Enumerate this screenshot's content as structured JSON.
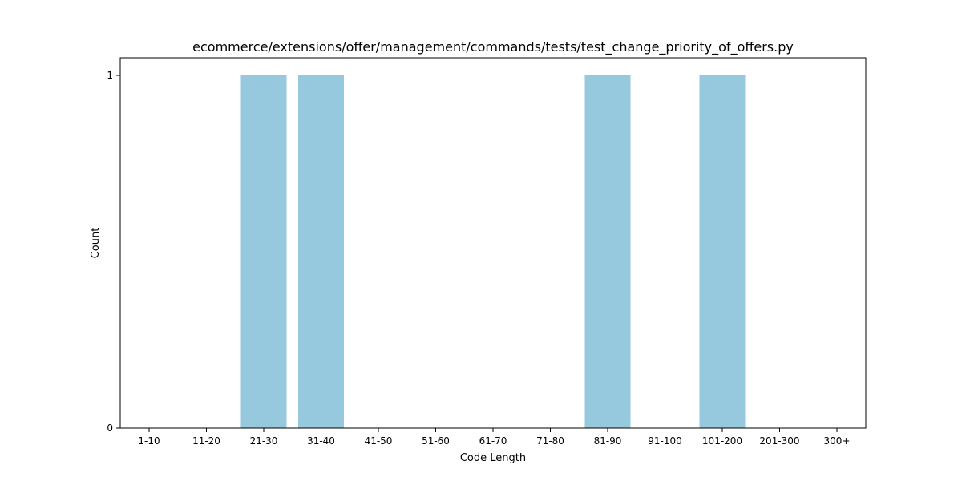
{
  "chart_data": {
    "type": "bar",
    "title": "ecommerce/extensions/offer/management/commands/tests/test_change_priority_of_offers.py",
    "xlabel": "Code Length",
    "ylabel": "Count",
    "categories": [
      "1-10",
      "11-20",
      "21-30",
      "31-40",
      "41-50",
      "51-60",
      "61-70",
      "71-80",
      "81-90",
      "91-100",
      "101-200",
      "201-300",
      "300+"
    ],
    "values": [
      0,
      0,
      1,
      1,
      0,
      0,
      0,
      0,
      1,
      0,
      1,
      0,
      0
    ],
    "ylim": [
      0,
      1
    ],
    "yticks": [
      0,
      1
    ],
    "grid": false,
    "bar_color": "#96c8de"
  }
}
